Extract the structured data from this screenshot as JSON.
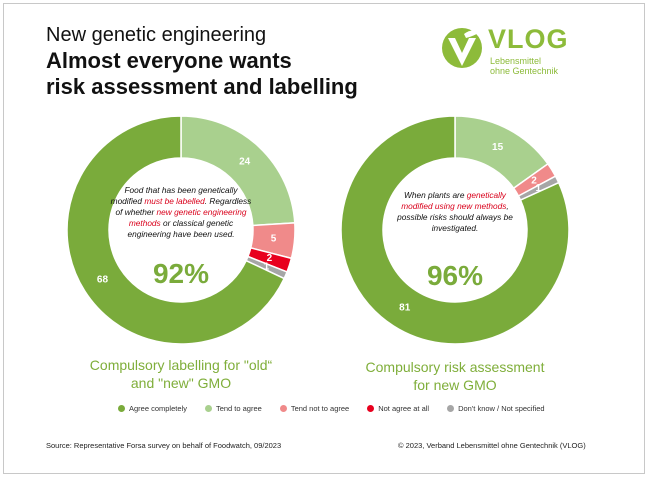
{
  "header": {
    "subtitle": "New genetic engineering",
    "title_line1": "Almost everyone wants",
    "title_line2": "risk assessment and labelling"
  },
  "logo": {
    "word": "VLOG",
    "sub_line1": "Lebensmittel",
    "sub_line2": "ohne Gentechnik"
  },
  "colors": {
    "agree_completely": "#7aab3b",
    "tend_to_agree": "#a9d08e",
    "tend_not_to_agree": "#f08a8a",
    "not_agree_at_all": "#e8001e",
    "dont_know": "#a6a6a6",
    "highlight_text": "#d9001b"
  },
  "chart_data": [
    {
      "type": "pie",
      "variant": "donut",
      "categories": [
        "Agree completely",
        "Tend to agree",
        "Tend not to agree",
        "Not agree at all",
        "Don't know / Not specified"
      ],
      "values": [
        68,
        24,
        5,
        2,
        1
      ],
      "center_text": [
        [
          {
            "t": "Food that has been genetically",
            "hl": false
          }
        ],
        [
          {
            "t": "modified ",
            "hl": false
          },
          {
            "t": "must be labelled",
            "hl": true
          },
          {
            "t": ". Regardless",
            "hl": false
          }
        ],
        [
          {
            "t": "of whether ",
            "hl": false
          },
          {
            "t": "new genetic engineering",
            "hl": true
          }
        ],
        [
          {
            "t": "methods",
            "hl": true
          },
          {
            "t": " or classical genetic",
            "hl": false
          }
        ],
        [
          {
            "t": "engineering have been used.",
            "hl": false
          }
        ]
      ],
      "center_percent": "92%",
      "caption_line1": "Compulsory labelling for \"old“",
      "caption_line2": "and \"new\" GMO"
    },
    {
      "type": "pie",
      "variant": "donut",
      "categories": [
        "Agree completely",
        "Tend to agree",
        "Tend not to agree",
        "Not agree at all",
        "Don't know / Not specified"
      ],
      "values": [
        81,
        15,
        2,
        0,
        1
      ],
      "center_text": [
        [
          {
            "t": "When plants are ",
            "hl": false
          },
          {
            "t": "genetically",
            "hl": true
          }
        ],
        [
          {
            "t": "modified using new methods",
            "hl": true
          },
          {
            "t": ",",
            "hl": false
          }
        ],
        [
          {
            "t": "possible risks should always be",
            "hl": false
          }
        ],
        [
          {
            "t": "investigated.",
            "hl": false
          }
        ]
      ],
      "center_percent": "96%",
      "caption_line1": "Compulsory risk assessment",
      "caption_line2": "for new GMO"
    }
  ],
  "legend": [
    {
      "label": "Agree completely",
      "color": "#7aab3b"
    },
    {
      "label": "Tend to agree",
      "color": "#a9d08e"
    },
    {
      "label": "Tend not to agree",
      "color": "#f08a8a"
    },
    {
      "label": "Not agree at all",
      "color": "#e8001e"
    },
    {
      "label": "Don't know / Not specified",
      "color": "#a6a6a6"
    }
  ],
  "footer": {
    "source": "Source: Representative Forsa survey on behalf of Foodwatch, 09/2023",
    "copyright": "© 2023, Verband Lebensmittel ohne Gentechnik (VLOG)"
  }
}
